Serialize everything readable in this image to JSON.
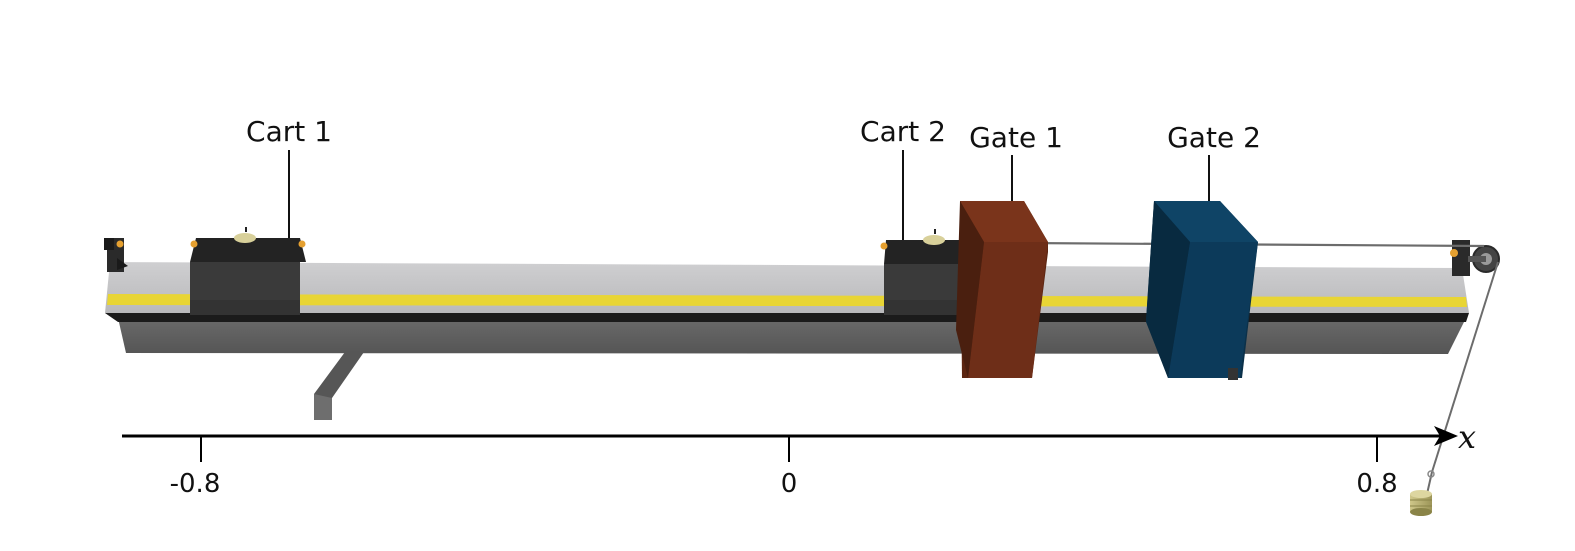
{
  "labels": {
    "cart1": "Cart 1",
    "cart2": "Cart 2",
    "gate1": "Gate 1",
    "gate2": "Gate 2"
  },
  "axis": {
    "variable": "x",
    "ticks": [
      {
        "value": -0.8,
        "label": "-0.8"
      },
      {
        "value": 0,
        "label": "0"
      },
      {
        "value": 0.8,
        "label": "0.8"
      }
    ]
  },
  "colors": {
    "track_top": "#c4c4c6",
    "track_stripe": "#e8d535",
    "track_body": "#5e5e5e",
    "cart": "#2e2e2e",
    "gate1": "#6e2e18",
    "gate2": "#0c3a5a",
    "axis": "#000000"
  }
}
